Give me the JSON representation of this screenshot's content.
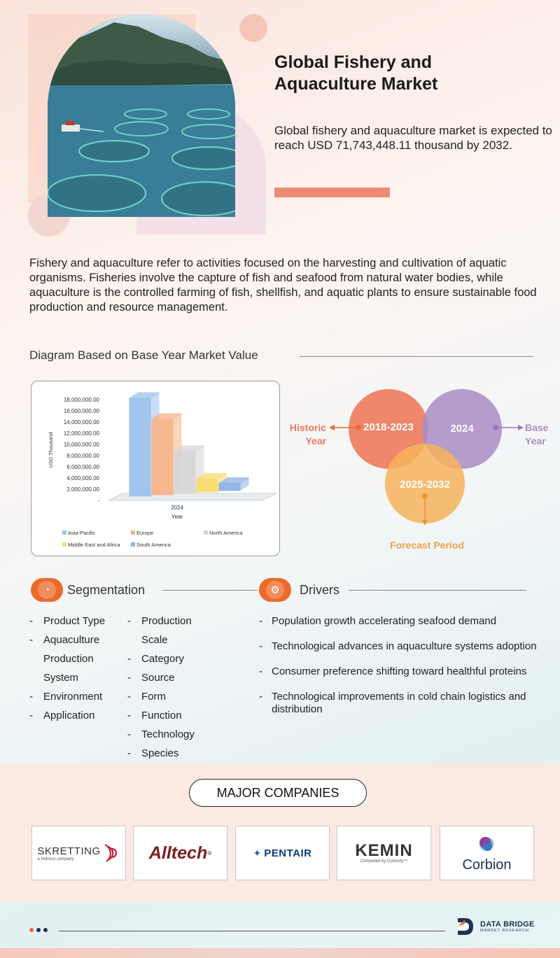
{
  "header": {
    "title_line1": "Global Fishery and",
    "title_line2": "Aquaculture Market",
    "summary": "Global fishery and aquaculture market is expected to reach USD 71,743,448.11 thousand by 2032."
  },
  "definition": "Fishery and aquaculture refer to activities focused on the harvesting and cultivation of aquatic organisms. Fisheries involve the capture of fish and seafood from natural water bodies, while aquaculture is the controlled farming of fish, shellfish, and aquatic plants to ensure sustainable food production and resource management.",
  "diagram_heading": "Diagram Based on Base Year Market Value",
  "chart_data": {
    "type": "bar",
    "categories": [
      "2024"
    ],
    "xlabel": "Year",
    "ylabel": "USD Thousand",
    "ylim": [
      0,
      18000000
    ],
    "yticks": [
      "18,000,000.00",
      "16,000,000.00",
      "14,000,000.00",
      "12,000,000.00",
      "10,000,000.00",
      "8,000,000.00",
      "6,000,000.00",
      "4,000,000.00",
      "2,000,000.00",
      "-"
    ],
    "series": [
      {
        "name": "Asia-Pacific",
        "values": [
          17500000
        ],
        "color": "#9cc3ec"
      },
      {
        "name": "Europe",
        "values": [
          13500000
        ],
        "color": "#f7b48a"
      },
      {
        "name": "North America",
        "values": [
          7500000
        ],
        "color": "#d6d6d6"
      },
      {
        "name": "Middle East and Africa",
        "values": [
          2300000
        ],
        "color": "#f7dc6f"
      },
      {
        "name": "South America",
        "values": [
          1300000
        ],
        "color": "#8fb2e6"
      }
    ],
    "legend_position": "bottom"
  },
  "timeline": {
    "historic_label_1": "Historic",
    "historic_label_2": "Year",
    "historic_range": "2018-2023",
    "base_range": "2024",
    "base_label_1": "Base",
    "base_label_2": "Year",
    "forecast_range": "2025-2032",
    "forecast_label": "Forecast Period",
    "colors": {
      "historic": "#ee7b5e",
      "base": "#a98cc5",
      "forecast": "#f6b35a"
    }
  },
  "segmentation": {
    "heading": "Segmentation",
    "col1": [
      "Product Type",
      "Aquaculture Production System",
      "Environment",
      "Application"
    ],
    "col2": [
      "Production Scale",
      "Category",
      "Source",
      "Form",
      "Function",
      "Technology",
      "Species"
    ]
  },
  "drivers": {
    "heading": "Drivers",
    "items": [
      "Population growth accelerating seafood demand",
      "Technological advances in aquaculture systems adoption",
      "Consumer preference shifting toward healthful proteins",
      "Technological improvements in cold chain logistics and distribution"
    ]
  },
  "companies": {
    "heading": "MAJOR COMPANIES",
    "logos": [
      {
        "name": "SKRETTING",
        "tagline": "a Nutreco company"
      },
      {
        "name": "Alltech",
        "tagline": ""
      },
      {
        "name": "PENTAIR",
        "tagline": ""
      },
      {
        "name": "KEMIN",
        "tagline": "Compelled by Curiosity™"
      },
      {
        "name": "Corbion",
        "tagline": ""
      }
    ]
  },
  "footer": {
    "brand_line1": "DATA BRIDGE",
    "brand_line2": "MARKET RESEARCH",
    "dot_colors": [
      "#ec6a2a",
      "#1d3354",
      "#1d3354"
    ]
  },
  "accent": "#ec6a2a"
}
